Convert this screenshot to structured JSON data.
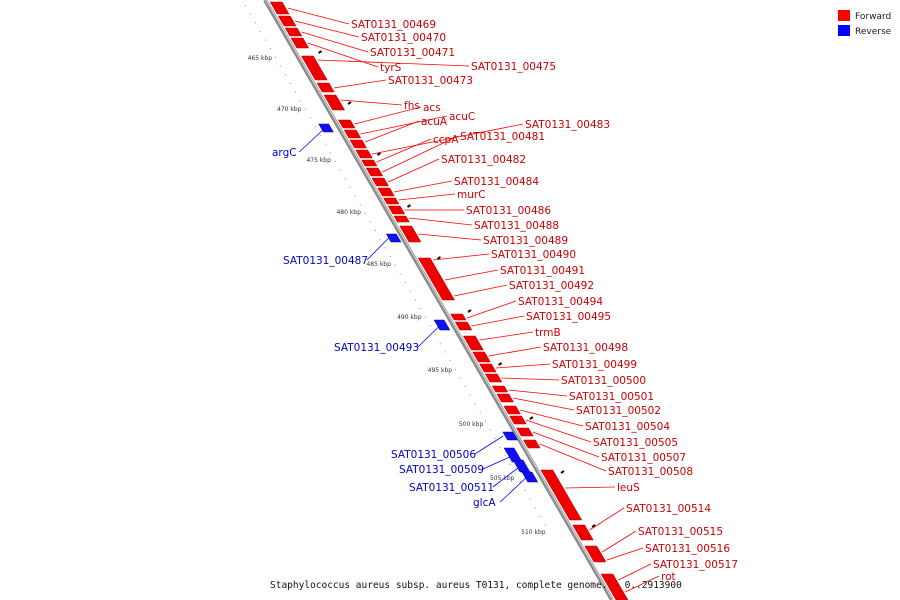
{
  "legend": {
    "forward_label": "Forward",
    "reverse_label": "Reverse",
    "forward_color": "#ff0000",
    "reverse_color": "#0000ff"
  },
  "caption": "Staphylococcus aureus subsp. aureus T0131, complete genome. - 0..2913900",
  "ticks": [
    "465 kbp",
    "470 kbp",
    "475 kbp",
    "480 kbp",
    "485 kbp",
    "490 kbp",
    "495 kbp",
    "500 kbp",
    "505 kbp",
    "510 kbp"
  ],
  "forward_genes": [
    "SAT0131_00469",
    "SAT0131_00470",
    "SAT0131_00471",
    "tyrS",
    "SAT0131_00475",
    "SAT0131_00473",
    "fhs",
    "acs",
    "acuC",
    "acuA",
    "SAT0131_00483",
    "ccpA",
    "SAT0131_00481",
    "SAT0131_00482",
    "SAT0131_00484",
    "murC",
    "SAT0131_00486",
    "SAT0131_00488",
    "SAT0131_00489",
    "SAT0131_00490",
    "SAT0131_00491",
    "SAT0131_00492",
    "SAT0131_00494",
    "SAT0131_00495",
    "trmB",
    "SAT0131_00498",
    "SAT0131_00499",
    "SAT0131_00500",
    "SAT0131_00501",
    "SAT0131_00502",
    "SAT0131_00504",
    "SAT0131_00505",
    "SAT0131_00507",
    "SAT0131_00508",
    "leuS",
    "SAT0131_00514",
    "SAT0131_00515",
    "SAT0131_00516",
    "SAT0131_00517",
    "rot"
  ],
  "reverse_genes": [
    "argC",
    "SAT0131_00487",
    "SAT0131_00493",
    "SAT0131_00506",
    "SAT0131_00509",
    "SAT0131_00511",
    "glcA"
  ]
}
